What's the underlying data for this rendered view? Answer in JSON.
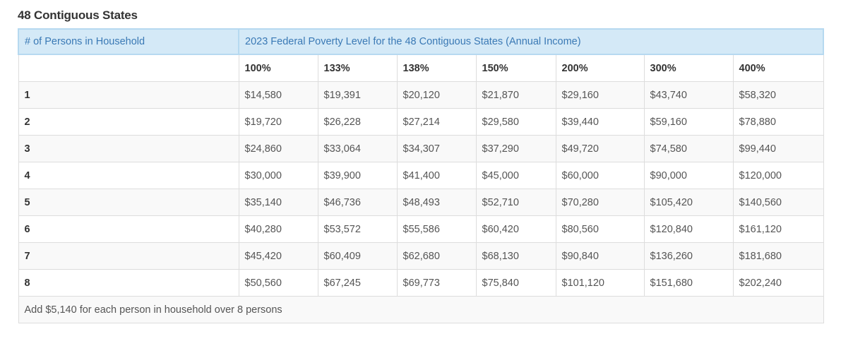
{
  "section_title": "48 Contiguous States",
  "table": {
    "header_persons": "# of Persons in Household",
    "header_caption": "2023 Federal Poverty Level for the 48 Contiguous States (Annual Income)",
    "percent_columns": [
      "100%",
      "133%",
      "138%",
      "150%",
      "200%",
      "300%",
      "400%"
    ],
    "rows": [
      {
        "persons": "1",
        "values": [
          "$14,580",
          "$19,391",
          "$20,120",
          "$21,870",
          "$29,160",
          "$43,740",
          "$58,320"
        ]
      },
      {
        "persons": "2",
        "values": [
          "$19,720",
          "$26,228",
          "$27,214",
          "$29,580",
          "$39,440",
          "$59,160",
          "$78,880"
        ]
      },
      {
        "persons": "3",
        "values": [
          "$24,860",
          "$33,064",
          "$34,307",
          "$37,290",
          "$49,720",
          "$74,580",
          "$99,440"
        ]
      },
      {
        "persons": "4",
        "values": [
          "$30,000",
          "$39,900",
          "$41,400",
          "$45,000",
          "$60,000",
          "$90,000",
          "$120,000"
        ]
      },
      {
        "persons": "5",
        "values": [
          "$35,140",
          "$46,736",
          "$48,493",
          "$52,710",
          "$70,280",
          "$105,420",
          "$140,560"
        ]
      },
      {
        "persons": "6",
        "values": [
          "$40,280",
          "$53,572",
          "$55,586",
          "$60,420",
          "$80,560",
          "$120,840",
          "$161,120"
        ]
      },
      {
        "persons": "7",
        "values": [
          "$45,420",
          "$60,409",
          "$62,680",
          "$68,130",
          "$90,840",
          "$136,260",
          "$181,680"
        ]
      },
      {
        "persons": "8",
        "values": [
          "$50,560",
          "$67,245",
          "$69,773",
          "$75,840",
          "$101,120",
          "$151,680",
          "$202,240"
        ]
      }
    ],
    "footer_note": "Add $5,140 for each person in household over 8 persons"
  },
  "colors": {
    "header_bg": "#d4e9f7",
    "header_text": "#3a79b5",
    "header_border": "#b6d9f0",
    "row_stripe": "#f9f9f9",
    "grid_line": "#dddddd"
  }
}
